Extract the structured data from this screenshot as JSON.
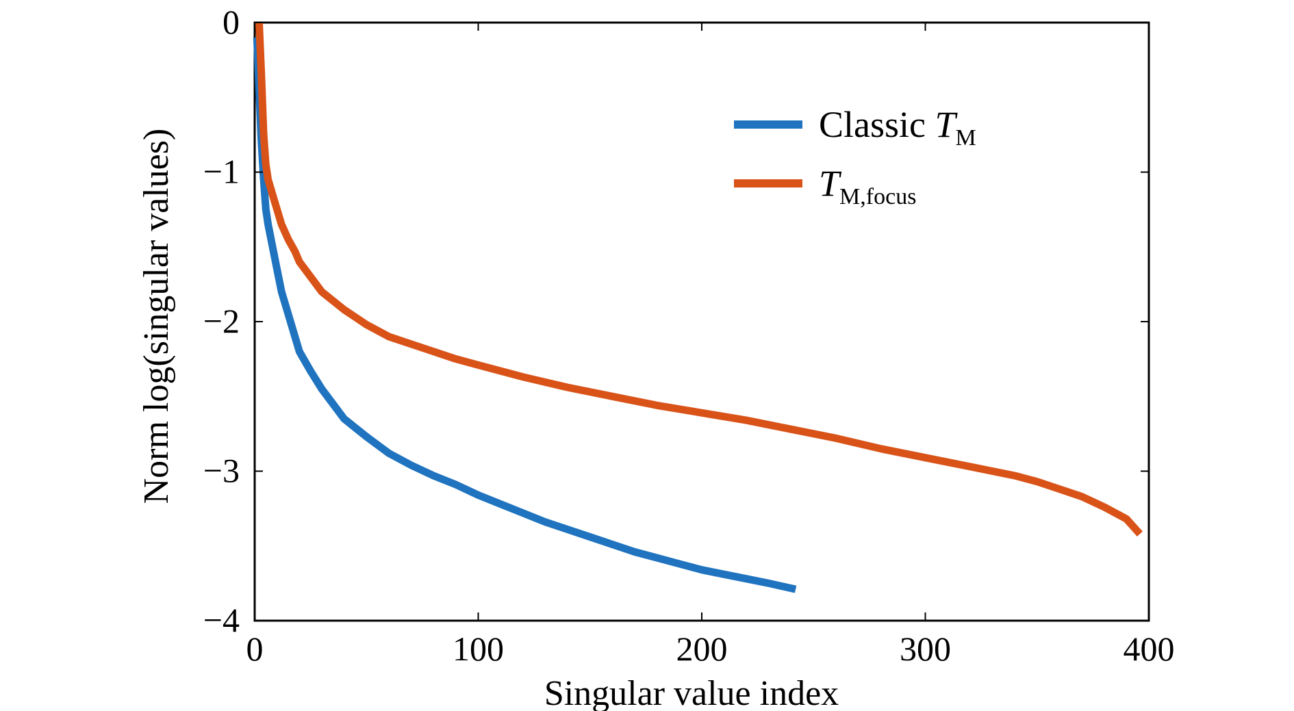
{
  "chart_data": {
    "type": "line",
    "xlabel": "Singular value index",
    "ylabel": "Norm log(singular values)",
    "xlim": [
      0,
      400
    ],
    "ylim": [
      -4,
      0
    ],
    "grid": false,
    "legend_position": "top-right",
    "x_ticks": [
      "0",
      "100",
      "200",
      "300",
      "400"
    ],
    "y_ticks": [
      "0",
      "−1",
      "−2",
      "−3",
      "−4"
    ],
    "x_tick_values": [
      0,
      100,
      200,
      300,
      400
    ],
    "y_tick_values": [
      0,
      -1,
      -2,
      -3,
      -4
    ],
    "series": [
      {
        "legend_text": "Classic ",
        "legend_italic": "T",
        "legend_sub": "M",
        "color": "#1f73bf",
        "x": [
          1,
          2,
          3,
          4,
          5,
          6,
          8,
          10,
          12,
          15,
          18,
          20,
          25,
          30,
          35,
          40,
          50,
          60,
          70,
          80,
          90,
          100,
          110,
          120,
          130,
          140,
          150,
          160,
          170,
          180,
          190,
          200,
          210,
          220,
          230,
          242
        ],
        "y": [
          -0.1,
          -0.45,
          -0.8,
          -1.05,
          -1.25,
          -1.35,
          -1.5,
          -1.65,
          -1.8,
          -1.95,
          -2.1,
          -2.2,
          -2.33,
          -2.45,
          -2.55,
          -2.65,
          -2.77,
          -2.88,
          -2.96,
          -3.03,
          -3.09,
          -3.16,
          -3.22,
          -3.28,
          -3.34,
          -3.39,
          -3.44,
          -3.49,
          -3.54,
          -3.58,
          -3.62,
          -3.66,
          -3.69,
          -3.72,
          -3.75,
          -3.79
        ]
      },
      {
        "legend_text": "",
        "legend_italic": "T",
        "legend_sub": "M,focus",
        "color": "#d95319",
        "x": [
          2,
          3,
          4,
          5,
          6,
          8,
          10,
          12,
          15,
          18,
          20,
          25,
          30,
          40,
          50,
          60,
          70,
          80,
          90,
          100,
          120,
          140,
          160,
          180,
          200,
          220,
          240,
          260,
          280,
          300,
          320,
          340,
          350,
          360,
          370,
          380,
          390,
          396
        ],
        "y": [
          0.0,
          -0.35,
          -0.75,
          -0.95,
          -1.05,
          -1.15,
          -1.25,
          -1.35,
          -1.45,
          -1.53,
          -1.6,
          -1.7,
          -1.8,
          -1.92,
          -2.02,
          -2.1,
          -2.15,
          -2.2,
          -2.25,
          -2.29,
          -2.37,
          -2.44,
          -2.5,
          -2.56,
          -2.61,
          -2.66,
          -2.72,
          -2.78,
          -2.85,
          -2.91,
          -2.97,
          -3.03,
          -3.07,
          -3.12,
          -3.17,
          -3.24,
          -3.32,
          -3.42
        ]
      }
    ]
  }
}
